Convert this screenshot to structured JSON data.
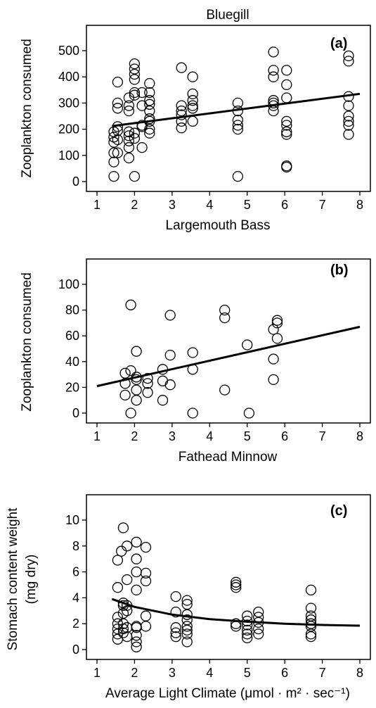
{
  "figure_title": "Bluegill",
  "chart_data": [
    {
      "type": "scatter",
      "panel_label": "(a)",
      "title": "Bluegill",
      "xlabel": "Largemouth Bass",
      "ylabel": "Zooplankton consumed",
      "xlim": [
        1,
        8
      ],
      "ylim": [
        0,
        500
      ],
      "xticks": [
        1,
        2,
        3,
        4,
        5,
        6,
        7,
        8
      ],
      "yticks": [
        0,
        100,
        200,
        300,
        400,
        500
      ],
      "fit_type": "linear",
      "fit_line": [
        [
          1.4,
          212
        ],
        [
          8,
          335
        ]
      ],
      "points": [
        [
          1.45,
          190
        ],
        [
          1.45,
          170
        ],
        [
          1.45,
          150
        ],
        [
          1.45,
          110
        ],
        [
          1.45,
          75
        ],
        [
          1.45,
          20
        ],
        [
          1.55,
          380
        ],
        [
          1.55,
          300
        ],
        [
          1.55,
          280
        ],
        [
          1.55,
          210
        ],
        [
          1.55,
          195
        ],
        [
          1.55,
          160
        ],
        [
          1.55,
          110
        ],
        [
          1.85,
          320
        ],
        [
          1.85,
          290
        ],
        [
          1.85,
          270
        ],
        [
          1.85,
          190
        ],
        [
          1.85,
          175
        ],
        [
          1.85,
          155
        ],
        [
          1.85,
          130
        ],
        [
          1.85,
          90
        ],
        [
          2.0,
          450
        ],
        [
          2.0,
          430
        ],
        [
          2.0,
          410
        ],
        [
          2.0,
          390
        ],
        [
          2.0,
          340
        ],
        [
          2.0,
          330
        ],
        [
          2.0,
          20
        ],
        [
          2.0,
          185
        ],
        [
          2.0,
          165
        ],
        [
          2.2,
          340
        ],
        [
          2.2,
          290
        ],
        [
          2.2,
          215
        ],
        [
          2.2,
          210
        ],
        [
          2.2,
          130
        ],
        [
          2.4,
          375
        ],
        [
          2.4,
          340
        ],
        [
          2.4,
          310
        ],
        [
          2.4,
          295
        ],
        [
          2.4,
          270
        ],
        [
          2.4,
          240
        ],
        [
          2.4,
          230
        ],
        [
          2.4,
          200
        ],
        [
          2.4,
          185
        ],
        [
          3.25,
          435
        ],
        [
          3.25,
          290
        ],
        [
          3.25,
          270
        ],
        [
          3.25,
          255
        ],
        [
          3.25,
          230
        ],
        [
          3.25,
          205
        ],
        [
          3.55,
          400
        ],
        [
          3.55,
          335
        ],
        [
          3.55,
          310
        ],
        [
          3.55,
          290
        ],
        [
          3.55,
          280
        ],
        [
          3.55,
          230
        ],
        [
          4.75,
          300
        ],
        [
          4.75,
          270
        ],
        [
          4.75,
          235
        ],
        [
          4.75,
          215
        ],
        [
          4.75,
          200
        ],
        [
          4.75,
          20
        ],
        [
          5.7,
          495
        ],
        [
          5.7,
          425
        ],
        [
          5.7,
          400
        ],
        [
          5.7,
          310
        ],
        [
          5.7,
          300
        ],
        [
          5.7,
          290
        ],
        [
          5.7,
          270
        ],
        [
          6.05,
          425
        ],
        [
          6.05,
          370
        ],
        [
          6.05,
          320
        ],
        [
          6.05,
          230
        ],
        [
          6.05,
          215
        ],
        [
          6.05,
          190
        ],
        [
          6.05,
          180
        ],
        [
          6.05,
          60
        ],
        [
          6.05,
          55
        ],
        [
          7.7,
          480
        ],
        [
          7.7,
          460
        ],
        [
          7.7,
          325
        ],
        [
          7.7,
          290
        ],
        [
          7.7,
          250
        ],
        [
          7.7,
          230
        ],
        [
          7.7,
          215
        ],
        [
          7.7,
          180
        ]
      ]
    },
    {
      "type": "scatter",
      "panel_label": "(b)",
      "xlabel": "Fathead Minnow",
      "ylabel": "Zooplankton consumed",
      "xlim": [
        1,
        8
      ],
      "ylim": [
        0,
        100
      ],
      "xticks": [
        1,
        2,
        3,
        4,
        5,
        6,
        7,
        8
      ],
      "yticks": [
        0,
        20,
        40,
        60,
        80,
        100
      ],
      "fit_type": "linear",
      "fit_line": [
        [
          1,
          21
        ],
        [
          8,
          67
        ]
      ],
      "points": [
        [
          1.75,
          31
        ],
        [
          1.75,
          23
        ],
        [
          1.75,
          14
        ],
        [
          1.9,
          84
        ],
        [
          1.9,
          33
        ],
        [
          1.9,
          0
        ],
        [
          2.05,
          48
        ],
        [
          2.05,
          28
        ],
        [
          2.05,
          26
        ],
        [
          2.05,
          18
        ],
        [
          2.05,
          10
        ],
        [
          2.35,
          27
        ],
        [
          2.35,
          23
        ],
        [
          2.35,
          16
        ],
        [
          2.75,
          34
        ],
        [
          2.75,
          25
        ],
        [
          2.75,
          10
        ],
        [
          2.95,
          76
        ],
        [
          2.95,
          45
        ],
        [
          2.95,
          22
        ],
        [
          3.55,
          47
        ],
        [
          3.55,
          34
        ],
        [
          3.55,
          0
        ],
        [
          4.4,
          80
        ],
        [
          4.4,
          74
        ],
        [
          4.4,
          18
        ],
        [
          5.0,
          53
        ],
        [
          5.05,
          0
        ],
        [
          5.7,
          65
        ],
        [
          5.7,
          42
        ],
        [
          5.7,
          26
        ],
        [
          5.8,
          72
        ],
        [
          5.8,
          70
        ],
        [
          5.8,
          58
        ]
      ]
    },
    {
      "type": "scatter",
      "panel_label": "(c)",
      "xlabel": "Average Light Climate (μmol · m² · sec⁻¹)",
      "ylabel": "Stomach content weight (mg dry)",
      "xlim": [
        1,
        8
      ],
      "ylim": [
        0,
        10
      ],
      "xticks": [
        1,
        2,
        3,
        4,
        5,
        6,
        7,
        8
      ],
      "yticks": [
        0,
        2,
        4,
        6,
        8,
        10
      ],
      "fit_type": "exponential decay",
      "fit_line": [
        [
          1.4,
          3.9
        ],
        [
          2.0,
          3.3
        ],
        [
          3.0,
          2.7
        ],
        [
          4.0,
          2.35
        ],
        [
          5.0,
          2.15
        ],
        [
          6.0,
          2.0
        ],
        [
          7.0,
          1.9
        ],
        [
          8.0,
          1.85
        ]
      ],
      "points": [
        [
          1.55,
          6.9
        ],
        [
          1.55,
          4.8
        ],
        [
          1.55,
          2.5
        ],
        [
          1.55,
          2.0
        ],
        [
          1.55,
          1.6
        ],
        [
          1.55,
          1.2
        ],
        [
          1.55,
          0.8
        ],
        [
          1.65,
          7.6
        ],
        [
          1.7,
          9.4
        ],
        [
          1.7,
          3.6
        ],
        [
          1.7,
          3.4
        ],
        [
          1.7,
          2.8
        ],
        [
          1.7,
          2.0
        ],
        [
          1.7,
          1.6
        ],
        [
          1.7,
          1.3
        ],
        [
          1.8,
          8.0
        ],
        [
          1.8,
          5.4
        ],
        [
          1.8,
          3.4
        ],
        [
          1.8,
          3.0
        ],
        [
          1.8,
          1.7
        ],
        [
          1.8,
          1.0
        ],
        [
          2.05,
          8.3
        ],
        [
          2.05,
          7.0
        ],
        [
          2.05,
          6.0
        ],
        [
          2.05,
          4.6
        ],
        [
          2.05,
          1.8
        ],
        [
          2.05,
          1.7
        ],
        [
          2.05,
          1.1
        ],
        [
          2.05,
          0.6
        ],
        [
          2.05,
          0.2
        ],
        [
          2.3,
          7.9
        ],
        [
          2.3,
          5.9
        ],
        [
          2.3,
          5.3
        ],
        [
          2.3,
          2.6
        ],
        [
          2.3,
          1.8
        ],
        [
          3.1,
          4.1
        ],
        [
          3.1,
          2.9
        ],
        [
          3.1,
          1.7
        ],
        [
          3.1,
          1.3
        ],
        [
          3.1,
          1.0
        ],
        [
          3.4,
          3.8
        ],
        [
          3.4,
          3.5
        ],
        [
          3.4,
          2.7
        ],
        [
          3.4,
          2.3
        ],
        [
          3.4,
          1.8
        ],
        [
          3.4,
          1.5
        ],
        [
          3.4,
          1.2
        ],
        [
          3.4,
          0.6
        ],
        [
          4.7,
          5.2
        ],
        [
          4.7,
          5.0
        ],
        [
          4.7,
          4.8
        ],
        [
          4.7,
          2.0
        ],
        [
          4.7,
          1.8
        ],
        [
          5.0,
          2.6
        ],
        [
          5.0,
          2.2
        ],
        [
          5.0,
          1.9
        ],
        [
          5.0,
          1.5
        ],
        [
          5.0,
          1.2
        ],
        [
          5.0,
          0.9
        ],
        [
          5.3,
          2.9
        ],
        [
          5.3,
          2.5
        ],
        [
          5.3,
          2.1
        ],
        [
          5.3,
          1.6
        ],
        [
          5.3,
          1.2
        ],
        [
          6.7,
          4.6
        ],
        [
          6.7,
          3.2
        ],
        [
          6.7,
          2.6
        ],
        [
          6.7,
          2.3
        ],
        [
          6.7,
          2.0
        ],
        [
          6.7,
          1.8
        ],
        [
          6.7,
          1.2
        ],
        [
          6.7,
          1.0
        ]
      ]
    }
  ]
}
